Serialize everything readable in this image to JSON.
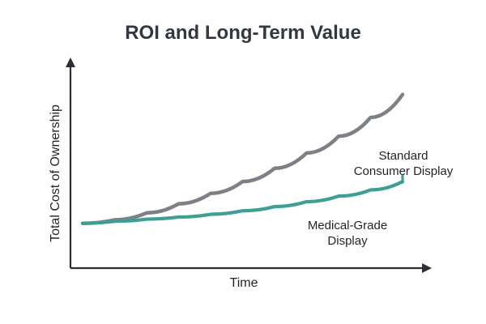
{
  "chart_data": {
    "type": "line",
    "title": "ROI and Long-Term Value",
    "xlabel": "Time",
    "ylabel": "Total Cost of Ownership",
    "grid": false,
    "legend": "inline-labels",
    "series": [
      {
        "name": "Standard Consumer Display",
        "label_lines": [
          "Standard",
          "Consumer Display"
        ],
        "color": "#7c8087",
        "values": [
          0.05,
          0.1,
          0.2,
          0.33,
          0.48,
          0.65,
          0.84,
          1.06,
          1.3,
          1.57,
          1.9
        ]
      },
      {
        "name": "Medical-Grade Display",
        "label_lines": [
          "Medical-Grade",
          "Display"
        ],
        "color": "#3e9f95",
        "values": [
          0.05,
          0.08,
          0.11,
          0.14,
          0.18,
          0.23,
          0.29,
          0.36,
          0.44,
          0.53,
          0.65
        ]
      }
    ],
    "x": [
      0,
      1,
      2,
      3,
      4,
      5,
      6,
      7,
      8,
      9,
      10
    ],
    "xlim": [
      0,
      10
    ],
    "ylim": [
      0,
      2
    ]
  }
}
